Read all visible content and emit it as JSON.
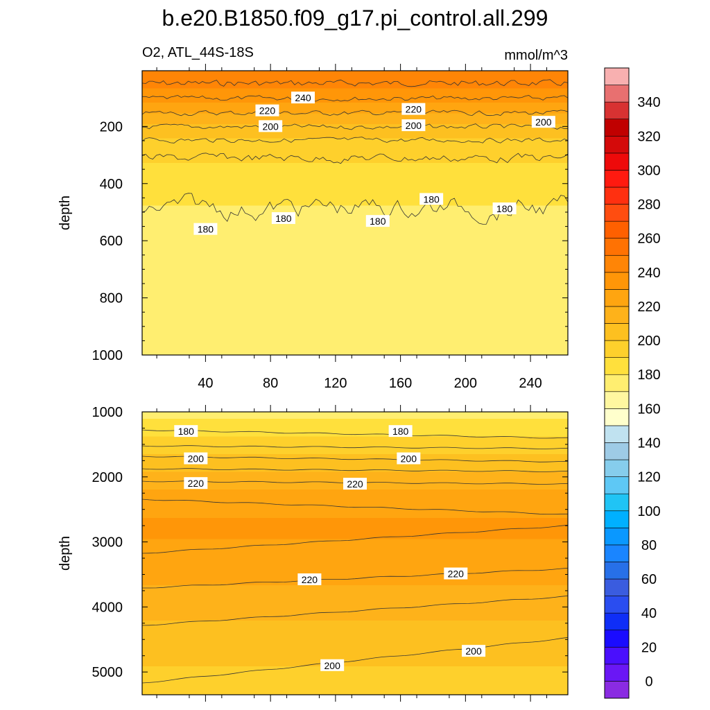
{
  "title": "b.e20.B1850.f09_g17.pi_control.all.299",
  "chart_data": [
    {
      "type": "heatmap",
      "subtitle_left": "O2, ATL_44S-18S",
      "subtitle_right": "mmol/m^3",
      "ylabel": "depth",
      "xlim": [
        1,
        263
      ],
      "ylim": [
        1000,
        5
      ],
      "y_reversed": true,
      "xticks": [
        "40",
        "80",
        "120",
        "160",
        "200",
        "240"
      ],
      "yticks": [
        "200",
        "400",
        "600",
        "800",
        "1000"
      ],
      "contour_values": [
        180,
        190,
        200,
        210,
        220,
        230,
        240
      ],
      "contour_labels": [
        {
          "text": "240",
          "x": 100,
          "y": 100
        },
        {
          "text": "220",
          "x": 78,
          "y": 145
        },
        {
          "text": "220",
          "x": 168,
          "y": 140
        },
        {
          "text": "200",
          "x": 80,
          "y": 200
        },
        {
          "text": "200",
          "x": 168,
          "y": 197
        },
        {
          "text": "200",
          "x": 248,
          "y": 185
        },
        {
          "text": "180",
          "x": 40,
          "y": 560
        },
        {
          "text": "180",
          "x": 88,
          "y": 522
        },
        {
          "text": "180",
          "x": 146,
          "y": 532
        },
        {
          "text": "180",
          "x": 179,
          "y": 455
        },
        {
          "text": "180",
          "x": 224,
          "y": 488
        }
      ],
      "depth_profile": [
        {
          "depth": 25,
          "o2": 245
        },
        {
          "depth": 100,
          "o2": 235
        },
        {
          "depth": 200,
          "o2": 205
        },
        {
          "depth": 300,
          "o2": 192
        },
        {
          "depth": 400,
          "o2": 182
        },
        {
          "depth": 600,
          "o2": 176
        },
        {
          "depth": 1000,
          "o2": 174
        }
      ]
    },
    {
      "type": "heatmap",
      "ylabel": "depth",
      "xlim": [
        1,
        263
      ],
      "ylim": [
        5350,
        1000
      ],
      "y_reversed": true,
      "yticks": [
        "1000",
        "2000",
        "3000",
        "4000",
        "5000"
      ],
      "contour_values": [
        180,
        190,
        200,
        210,
        220,
        230
      ],
      "contour_labels": [
        {
          "text": "180",
          "x": 28,
          "y": 1300
        },
        {
          "text": "180",
          "x": 160,
          "y": 1300
        },
        {
          "text": "200",
          "x": 34,
          "y": 1720
        },
        {
          "text": "200",
          "x": 165,
          "y": 1720
        },
        {
          "text": "220",
          "x": 34,
          "y": 2100
        },
        {
          "text": "220",
          "x": 132,
          "y": 2110
        },
        {
          "text": "220",
          "x": 104,
          "y": 3580
        },
        {
          "text": "220",
          "x": 194,
          "y": 3490
        },
        {
          "text": "200",
          "x": 118,
          "y": 4900
        },
        {
          "text": "200",
          "x": 205,
          "y": 4680
        }
      ],
      "depth_profile": [
        {
          "depth": 1000,
          "o2": 176
        },
        {
          "depth": 1500,
          "o2": 195
        },
        {
          "depth": 2000,
          "o2": 215
        },
        {
          "depth": 2700,
          "o2": 233
        },
        {
          "depth": 3500,
          "o2": 222
        },
        {
          "depth": 4500,
          "o2": 205
        },
        {
          "depth": 5300,
          "o2": 195
        }
      ]
    },
    {
      "type": "colorbar",
      "levels": [
        -10,
        0,
        10,
        20,
        30,
        40,
        50,
        60,
        70,
        80,
        90,
        100,
        110,
        120,
        130,
        140,
        150,
        160,
        170,
        180,
        190,
        200,
        210,
        220,
        230,
        240,
        250,
        260,
        270,
        280,
        290,
        300,
        310,
        320,
        330,
        340,
        350,
        360
      ],
      "tick_labels": [
        "0",
        "20",
        "40",
        "60",
        "80",
        "100",
        "120",
        "140",
        "160",
        "180",
        "200",
        "220",
        "240",
        "260",
        "280",
        "300",
        "320",
        "340"
      ],
      "colors": [
        "#8a2be2",
        "#6a17f5",
        "#4a0ffd",
        "#1a0cff",
        "#0f2ef7",
        "#2a4df0",
        "#3a5cdf",
        "#2770e8",
        "#1a85ff",
        "#0a98ff",
        "#00b0ff",
        "#20c4f5",
        "#5ec8f5",
        "#86cdec",
        "#9ecbe6",
        "#c0e2f0",
        "#ffffcc",
        "#fff7a0",
        "#ffee70",
        "#ffe03c",
        "#fed02c",
        "#fdc020",
        "#feb21a",
        "#ffa510",
        "#ff9608",
        "#ff8506",
        "#ff7203",
        "#ff6000",
        "#ff4d10",
        "#ff3010",
        "#ff1a10",
        "#ee0a0a",
        "#d40a0a",
        "#c00000",
        "#d83232",
        "#e87070",
        "#f8b0b0"
      ]
    }
  ]
}
